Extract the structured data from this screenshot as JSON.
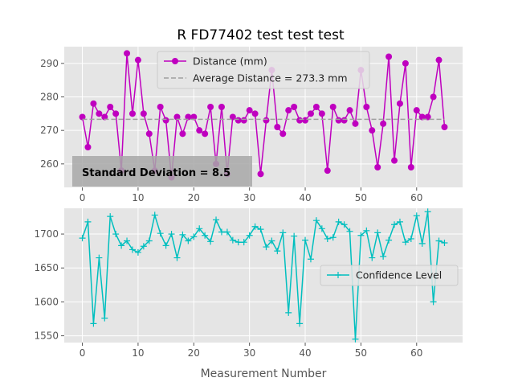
{
  "figure_title": "R FD77402 test test test",
  "chart_data": [
    {
      "type": "line",
      "title": "",
      "xlabel": "",
      "ylabel": "",
      "xlim": [
        -3.25,
        68.25
      ],
      "ylim": [
        253,
        295
      ],
      "x_ticks": [
        0,
        10,
        20,
        30,
        40,
        50,
        60
      ],
      "y_ticks": [
        260,
        270,
        280,
        290
      ],
      "grid": true,
      "legend": "top-center",
      "series": [
        {
          "name": "Distance (mm)",
          "color": "#bf00bf",
          "marker": "circle",
          "x": [
            0,
            1,
            2,
            3,
            4,
            5,
            6,
            7,
            8,
            9,
            10,
            11,
            12,
            13,
            14,
            15,
            16,
            17,
            18,
            19,
            20,
            21,
            22,
            23,
            24,
            25,
            26,
            27,
            28,
            29,
            30,
            31,
            32,
            33,
            34,
            35,
            36,
            37,
            38,
            39,
            40,
            41,
            42,
            43,
            44,
            45,
            46,
            47,
            48,
            49,
            50,
            51,
            52,
            53,
            54,
            55,
            56,
            57,
            58,
            59,
            60,
            61,
            62,
            63,
            64,
            65
          ],
          "values": [
            274,
            265,
            278,
            275,
            274,
            277,
            275,
            258,
            293,
            275,
            291,
            275,
            269,
            258,
            277,
            273,
            256,
            274,
            269,
            274,
            274,
            270,
            269,
            277,
            260,
            277,
            257,
            274,
            273,
            273,
            276,
            275,
            257,
            273,
            288,
            271,
            269,
            276,
            277,
            273,
            273,
            275,
            277,
            275,
            258,
            277,
            273,
            273,
            276,
            272,
            288,
            277,
            270,
            259,
            272,
            292,
            261,
            278,
            290,
            259,
            276,
            274,
            274,
            280,
            291,
            271
          ]
        },
        {
          "name": "Average Distance = 273.3 mm",
          "color": "#a0a0a0",
          "style": "dashed",
          "x": [
            0,
            65
          ],
          "values": [
            273.3,
            273.3
          ]
        }
      ],
      "annotation": "Standard Deviation = 8.5"
    },
    {
      "type": "line",
      "title": "",
      "xlabel": "Measurement Number",
      "ylabel": "",
      "xlim": [
        -3.25,
        68.25
      ],
      "ylim": [
        1540,
        1738
      ],
      "x_ticks": [
        0,
        10,
        20,
        30,
        40,
        50,
        60
      ],
      "y_ticks": [
        1550,
        1600,
        1650,
        1700
      ],
      "grid": true,
      "legend": "center-right",
      "series": [
        {
          "name": "Confidence Level",
          "color": "#00bfbf",
          "marker": "plus",
          "x": [
            0,
            1,
            2,
            3,
            4,
            5,
            6,
            7,
            8,
            9,
            10,
            11,
            12,
            13,
            14,
            15,
            16,
            17,
            18,
            19,
            20,
            21,
            22,
            23,
            24,
            25,
            26,
            27,
            28,
            29,
            30,
            31,
            32,
            33,
            34,
            35,
            36,
            37,
            38,
            39,
            40,
            41,
            42,
            43,
            44,
            45,
            46,
            47,
            48,
            49,
            50,
            51,
            52,
            53,
            54,
            55,
            56,
            57,
            58,
            59,
            60,
            61,
            62,
            63,
            64,
            65
          ],
          "values": [
            1694,
            1718,
            1568,
            1665,
            1576,
            1726,
            1700,
            1683,
            1690,
            1677,
            1673,
            1682,
            1690,
            1728,
            1701,
            1683,
            1700,
            1665,
            1699,
            1690,
            1696,
            1708,
            1698,
            1689,
            1721,
            1703,
            1703,
            1691,
            1688,
            1688,
            1698,
            1711,
            1707,
            1681,
            1690,
            1675,
            1702,
            1584,
            1697,
            1568,
            1691,
            1663,
            1720,
            1708,
            1693,
            1695,
            1718,
            1714,
            1704,
            1545,
            1698,
            1705,
            1665,
            1702,
            1667,
            1691,
            1714,
            1718,
            1688,
            1693,
            1727,
            1686,
            1733,
            1600,
            1690,
            1687
          ]
        }
      ]
    }
  ]
}
